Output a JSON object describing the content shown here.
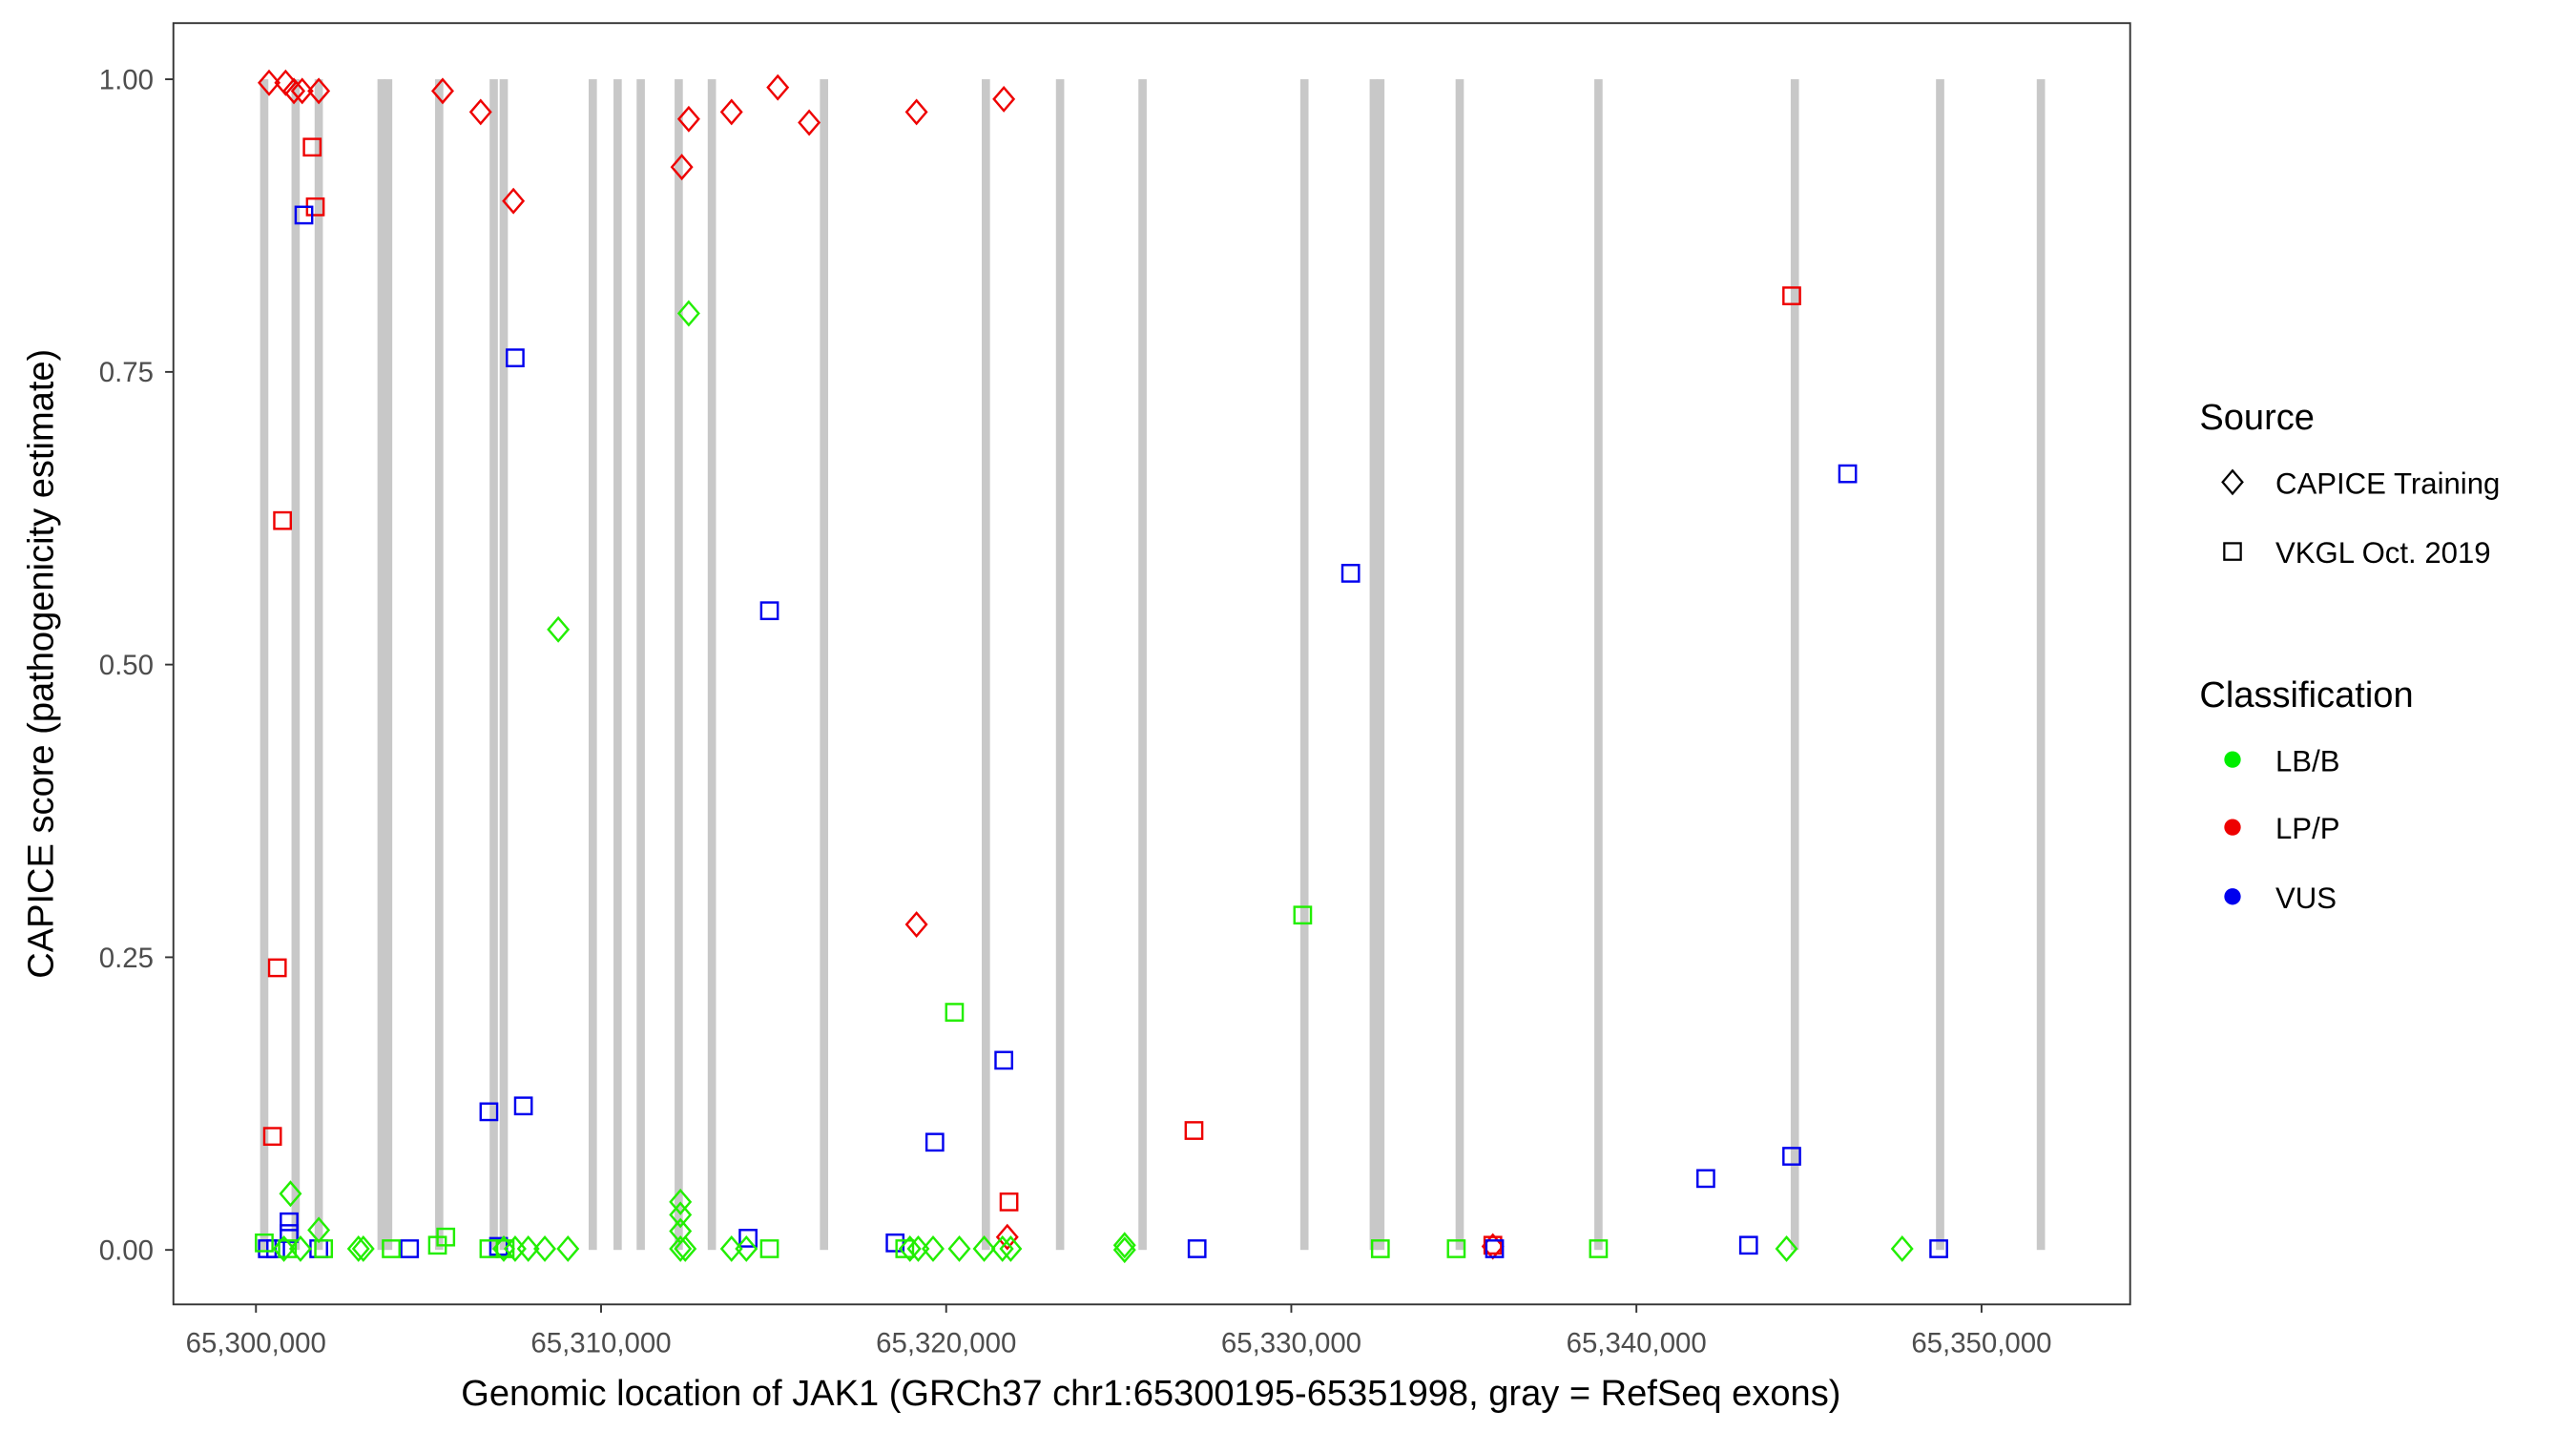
{
  "chart_data": {
    "type": "scatter",
    "xlabel": "Genomic location of JAK1 (GRCh37 chr1:65300195-65351998, gray = RefSeq exons)",
    "ylabel": "CAPICE score (pathogenicity estimate)",
    "xlim": [
      65297600,
      65354300
    ],
    "ylim": [
      -0.047,
      1.047
    ],
    "x_ticks": [
      65300000,
      65310000,
      65320000,
      65330000,
      65340000,
      65350000
    ],
    "x_tick_labels": [
      "65,300,000",
      "65,310,000",
      "65,320,000",
      "65,330,000",
      "65,340,000",
      "65,350,000"
    ],
    "y_ticks": [
      0,
      0.25,
      0.5,
      0.75,
      1
    ],
    "y_tick_labels": [
      "0.00",
      "0.25",
      "0.50",
      "0.75",
      "1.00"
    ],
    "grid": false,
    "exons": [
      65300240,
      65301150,
      65301820,
      65303640,
      65303830,
      65305310,
      65306890,
      65307180,
      65309760,
      65310480,
      65311150,
      65312250,
      65313210,
      65316460,
      65321150,
      65323300,
      65325690,
      65330380,
      65332390,
      65332580,
      65334880,
      65338900,
      65344590,
      65348800,
      65351720
    ],
    "legend": {
      "placement": "right",
      "source_title": "Source",
      "source_items": [
        {
          "label": "CAPICE Training",
          "shape": "diamond"
        },
        {
          "label": "VKGL Oct. 2019",
          "shape": "square"
        }
      ],
      "class_title": "Classification",
      "class_items": [
        {
          "label": "LB/B",
          "color": "#00ee00"
        },
        {
          "label": "LP/P",
          "color": "#ee0000"
        },
        {
          "label": "VUS",
          "color": "#0000ee"
        }
      ]
    },
    "colors": {
      "LB/B": "#22ee00",
      "LP/P": "#ee0000",
      "VUS": "#0000ee",
      "exon": "#c8c8c8"
    },
    "series": [
      {
        "name": "LP/P CAPICE Training",
        "class": "LP/P",
        "shape": "diamond",
        "x_offset_kb": [
          0.38,
          0.86,
          1.1,
          1.34,
          1.82,
          5.41,
          6.51,
          7.46,
          12.34,
          12.54,
          13.78,
          15.12,
          16.03,
          19.14,
          21.67,
          19.14,
          21.77,
          35.84
        ],
        "y": [
          0.997,
          0.997,
          0.99,
          0.99,
          0.99,
          0.99,
          0.972,
          0.896,
          0.925,
          0.966,
          0.972,
          0.993,
          0.963,
          0.972,
          0.983,
          0.278,
          0.011,
          0.003
        ]
      },
      {
        "name": "LP/P VKGL",
        "class": "LP/P",
        "shape": "square",
        "x_offset_kb": [
          1.63,
          1.72,
          0.77,
          0.62,
          0.48,
          21.82,
          27.18,
          44.5,
          35.84
        ],
        "y": [
          0.942,
          0.891,
          0.623,
          0.241,
          0.097,
          0.041,
          0.102,
          0.815,
          0.004
        ]
      },
      {
        "name": "VUS VKGL",
        "class": "VUS",
        "shape": "square",
        "x_offset_kb": [
          1.39,
          7.51,
          14.88,
          31.72,
          46.12,
          6.75,
          7.75,
          21.67,
          19.67,
          42.01,
          44.5,
          0.96,
          0.96,
          0.33,
          0.57,
          1.82,
          4.45,
          7.03,
          14.26,
          18.52,
          27.27,
          35.89,
          43.25,
          48.76
        ],
        "y": [
          0.884,
          0.762,
          0.546,
          0.578,
          0.663,
          0.118,
          0.123,
          0.162,
          0.092,
          0.061,
          0.08,
          0.024,
          0.014,
          0.001,
          0.001,
          0.001,
          0.001,
          0.003,
          0.01,
          0.006,
          0.001,
          0.001,
          0.004,
          0.001
        ]
      },
      {
        "name": "LB/B CAPICE Training",
        "class": "LB/B",
        "shape": "diamond",
        "x_offset_kb": [
          12.54,
          8.76,
          1.0,
          1.82,
          12.3,
          12.3,
          12.3,
          12.3,
          12.44,
          2.97,
          3.11,
          7.18,
          7.51,
          7.89,
          8.37,
          9.04,
          13.78,
          14.21,
          18.95,
          19.19,
          19.62,
          20.38,
          21.1,
          21.63,
          21.87,
          25.17,
          25.17,
          44.35,
          47.7,
          0.81,
          1.29
        ],
        "y": [
          0.8,
          0.53,
          0.048,
          0.017,
          0.041,
          0.03,
          0.016,
          0.001,
          0.001,
          0.001,
          0.001,
          0.001,
          0.001,
          0.001,
          0.001,
          0.001,
          0.001,
          0.001,
          0.001,
          0.001,
          0.001,
          0.001,
          0.001,
          0.001,
          0.001,
          0.004,
          0.0,
          0.001,
          0.001,
          0.001,
          0.001
        ]
      },
      {
        "name": "LB/B VKGL",
        "class": "LB/B",
        "shape": "square",
        "x_offset_kb": [
          20.24,
          30.33,
          5.5,
          5.26,
          3.92,
          0.24,
          6.75,
          7.22,
          14.88,
          18.8,
          32.58,
          34.78,
          38.9,
          0.91,
          1.96
        ],
        "y": [
          0.203,
          0.286,
          0.011,
          0.004,
          0.001,
          0.006,
          0.001,
          0.001,
          0.001,
          0.001,
          0.001,
          0.001,
          0.001,
          0.001,
          0.001
        ]
      }
    ],
    "x_base": 65300000
  }
}
